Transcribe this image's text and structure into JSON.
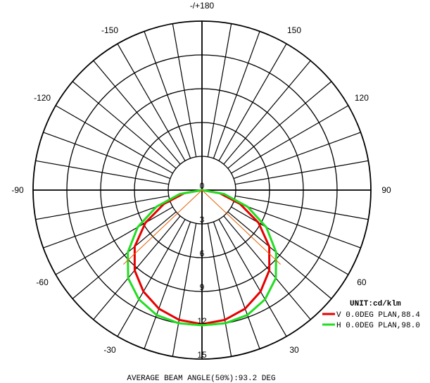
{
  "chart_data": {
    "type": "polar",
    "radial_axis": {
      "ticks": [
        "0",
        "3",
        "6",
        "9",
        "12",
        "15"
      ],
      "max": 15,
      "unit_label": "UNIT:cd/klm"
    },
    "angle_labels": {
      "top": "-/+180",
      "left": "-90",
      "right": "90",
      "upper_left": [
        "-150",
        "-120"
      ],
      "upper_right": [
        "150",
        "120"
      ],
      "lower_left": [
        "-60",
        "-30"
      ],
      "lower_right": [
        "60",
        "30"
      ],
      "bottom": "0"
    },
    "series": [
      {
        "name": "V 0.0DEG PLAN,88.4",
        "color": "#e60000",
        "values": [
          [
            0,
            11.9
          ],
          [
            10,
            11.7
          ],
          [
            20,
            11.2
          ],
          [
            30,
            10.4
          ],
          [
            40,
            9.3
          ],
          [
            50,
            7.8
          ],
          [
            60,
            5.8
          ],
          [
            70,
            3.6
          ],
          [
            80,
            1.6
          ],
          [
            90,
            0
          ]
        ]
      },
      {
        "name": "H 0.0DEG PLAN,98.0",
        "color": "#22dd22",
        "values": [
          [
            0,
            12.0
          ],
          [
            10,
            12.0
          ],
          [
            20,
            11.8
          ],
          [
            30,
            11.2
          ],
          [
            40,
            10.2
          ],
          [
            50,
            8.6
          ],
          [
            60,
            6.6
          ],
          [
            70,
            4.3
          ],
          [
            80,
            2.0
          ],
          [
            90,
            0
          ]
        ]
      }
    ],
    "footer": "AVERAGE BEAM ANGLE(50%):93.2 DEG"
  }
}
